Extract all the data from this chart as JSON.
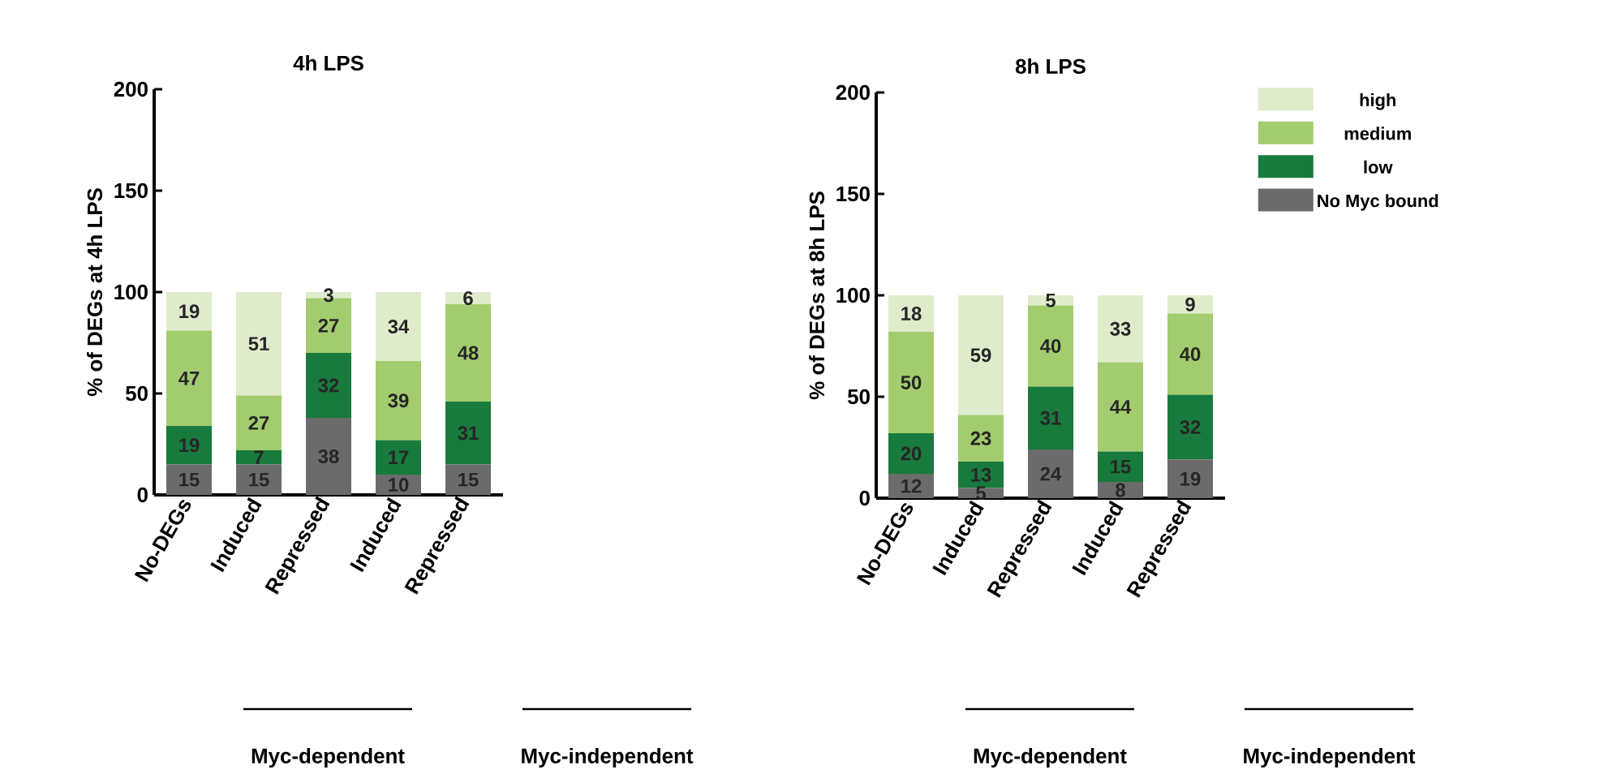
{
  "chart_data": [
    {
      "type": "bar",
      "stacked": true,
      "title": "4h LPS",
      "ylabel": "% of DEGs at 4h LPS",
      "categories": [
        "No-DEGs",
        "Induced",
        "Repressed",
        "Induced",
        "Repressed"
      ],
      "ylim": [
        0,
        200
      ],
      "yticks": [
        0,
        50,
        100,
        150,
        200
      ],
      "data_labels": true,
      "legend": false,
      "series": [
        {
          "color": "#6b6b6b",
          "values": [
            15,
            15,
            38,
            10,
            15
          ]
        },
        {
          "color": "#187a3c",
          "values": [
            19,
            7,
            32,
            17,
            31
          ]
        },
        {
          "color": "#a3cc6e",
          "values": [
            47,
            27,
            27,
            39,
            48
          ]
        },
        {
          "color": "#dfeccb",
          "values": [
            19,
            51,
            3,
            34,
            6
          ]
        }
      ],
      "annotations": [
        "Myc-dependent",
        "Myc-independent"
      ]
    },
    {
      "type": "bar",
      "stacked": true,
      "title": "8h LPS",
      "ylabel": "% of DEGs at 8h LPS",
      "categories": [
        "No-DEGs",
        "Induced",
        "Repressed",
        "Induced",
        "Repressed"
      ],
      "ylim": [
        0,
        200
      ],
      "yticks": [
        0,
        50,
        100,
        150,
        200
      ],
      "data_labels": true,
      "legend": "right",
      "series": [
        {
          "name": "No Myc bound",
          "color": "#6b6b6b",
          "values": [
            12,
            5,
            24,
            8,
            19
          ]
        },
        {
          "name": "low",
          "color": "#187a3c",
          "values": [
            20,
            13,
            31,
            15,
            32
          ]
        },
        {
          "name": "medium",
          "color": "#a3cc6e",
          "values": [
            50,
            23,
            40,
            44,
            40
          ]
        },
        {
          "name": "high",
          "color": "#dfeccb",
          "values": [
            18,
            59,
            5,
            33,
            9
          ]
        }
      ],
      "annotations": [
        "Myc-dependent",
        "Myc-independent"
      ]
    }
  ]
}
